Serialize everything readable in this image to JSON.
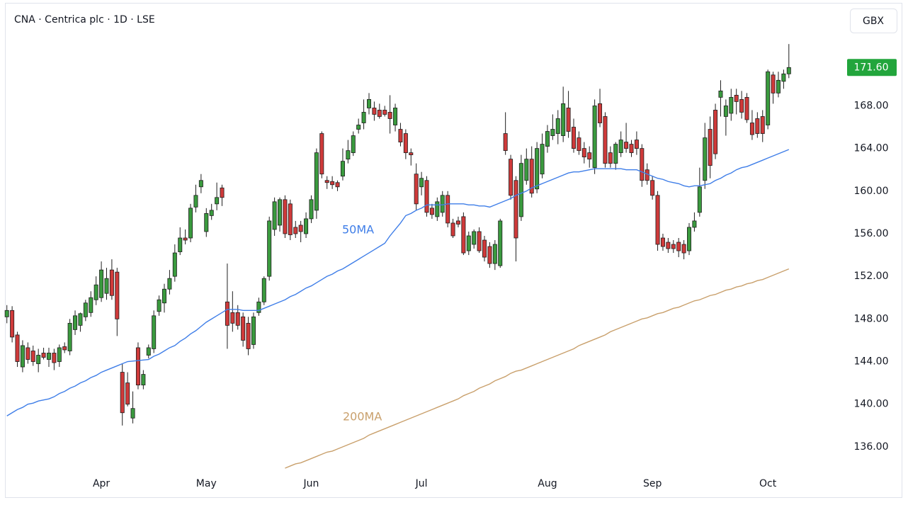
{
  "chart_data": {
    "type": "candlestick",
    "title": "CNA · Centrica plc · 1D · LSE",
    "currency": "GBX",
    "categories": [
      null,
      null,
      null,
      null,
      null,
      null,
      null,
      null,
      null,
      null,
      null,
      null,
      null,
      null,
      null,
      null,
      null,
      null,
      "Apr",
      null,
      null,
      null,
      null,
      null,
      null,
      null,
      null,
      null,
      null,
      null,
      null,
      null,
      null,
      null,
      null,
      null,
      null,
      null,
      "May",
      null,
      null,
      null,
      null,
      null,
      null,
      null,
      null,
      null,
      null,
      null,
      null,
      null,
      null,
      null,
      null,
      null,
      null,
      null,
      "Jun",
      null,
      null,
      null,
      null,
      null,
      null,
      null,
      null,
      null,
      null,
      null,
      null,
      null,
      null,
      null,
      null,
      null,
      null,
      null,
      null,
      "Jul",
      null,
      null,
      null,
      null,
      null,
      null,
      null,
      null,
      null,
      null,
      null,
      null,
      null,
      null,
      null,
      null,
      null,
      null,
      null,
      null,
      null,
      null,
      null,
      "Aug",
      null,
      null,
      null,
      null,
      null,
      null,
      null,
      null,
      null,
      null,
      null,
      null,
      null,
      null,
      null,
      null,
      null,
      null,
      null,
      "Sep",
      null,
      null,
      null,
      null,
      null,
      null,
      null,
      null,
      null,
      null,
      null,
      null,
      null,
      null,
      null,
      null,
      null,
      null,
      null,
      null,
      null,
      "Oct",
      null,
      null,
      null,
      null
    ],
    "open": [
      148.2,
      148.8,
      146.5,
      143.5,
      145.3,
      145.0,
      143.8,
      144.8,
      144.2,
      144.8,
      144.0,
      145.4,
      145.0,
      147.0,
      147.4,
      148.2,
      148.6,
      149.8,
      150.0,
      150.4,
      152.6,
      152.4,
      143.0,
      142.0,
      138.7,
      145.3,
      141.8,
      144.6,
      145.2,
      148.7,
      149.5,
      150.8,
      152.0,
      154.3,
      155.6,
      155.6,
      158.5,
      160.4,
      156.2,
      157.7,
      158.8,
      160.3,
      149.6,
      148.6,
      148.6,
      148.2,
      147.6,
      145.6,
      148.6,
      149.6,
      152.0,
      156.4,
      156.8,
      159.2,
      158.8,
      156.6,
      156.8,
      156.0,
      157.4,
      158.2,
      165.4,
      161.0,
      160.9,
      160.8,
      161.4,
      163.0,
      163.6,
      165.8,
      166.4,
      167.8,
      167.8,
      167.6,
      167.6,
      167.4,
      166.2,
      165.8,
      165.4,
      163.6,
      161.6,
      160.4,
      161.0,
      158.4,
      157.6,
      158.0,
      159.6,
      157.0,
      157.2,
      157.6,
      154.4,
      155.0,
      156.2,
      155.4,
      154.8,
      153.2,
      153.0,
      165.4,
      163.0,
      161.0,
      157.6,
      161.0,
      163.0,
      160.2,
      161.6,
      164.2,
      165.2,
      165.4,
      165.2,
      167.8,
      166.0,
      165.0,
      164.0,
      163.6,
      162.2,
      168.2,
      167.0,
      163.6,
      162.6,
      163.6,
      164.6,
      164.4,
      164.8,
      164.0,
      162.0,
      161.0,
      159.6,
      155.6,
      155.2,
      155.0,
      155.2,
      155.0,
      154.4,
      156.6,
      158.0,
      161.0,
      165.8,
      167.6,
      168.8,
      167.0,
      167.3,
      169.0,
      168.6,
      168.8,
      166.4,
      166.8,
      167.0,
      166.2,
      170.9,
      169.2,
      170.3,
      171.0
    ],
    "high": [
      149.3,
      149.2,
      146.8,
      146.0,
      145.8,
      145.5,
      145.2,
      145.3,
      145.3,
      145.2,
      145.6,
      145.8,
      148.0,
      148.8,
      148.6,
      149.8,
      150.6,
      152.0,
      153.4,
      152.8,
      153.6,
      152.8,
      143.8,
      143.0,
      141.2,
      145.8,
      143.2,
      145.6,
      148.8,
      150.2,
      151.3,
      152.6,
      155.0,
      156.6,
      156.4,
      158.8,
      160.6,
      161.6,
      158.4,
      158.8,
      160.8,
      160.6,
      153.2,
      150.6,
      149.3,
      148.6,
      148.2,
      148.6,
      150.0,
      152.0,
      157.6,
      159.4,
      159.4,
      159.6,
      159.2,
      157.2,
      157.2,
      158.0,
      159.6,
      164.0,
      165.6,
      161.4,
      161.4,
      161.0,
      164.0,
      164.8,
      165.6,
      166.8,
      168.6,
      169.2,
      168.4,
      168.2,
      168.0,
      169.0,
      168.2,
      166.4,
      165.8,
      164.0,
      162.6,
      161.8,
      161.4,
      158.8,
      159.4,
      160.0,
      160.0,
      157.4,
      157.6,
      158.0,
      156.2,
      156.4,
      156.6,
      155.8,
      155.2,
      155.4,
      157.4,
      167.4,
      163.4,
      161.4,
      163.4,
      164.0,
      164.2,
      164.6,
      165.4,
      166.2,
      167.2,
      167.6,
      169.8,
      169.4,
      166.8,
      165.6,
      164.6,
      164.2,
      168.6,
      169.6,
      167.4,
      164.2,
      164.6,
      165.6,
      166.4,
      164.8,
      165.6,
      164.4,
      162.6,
      161.4,
      160.0,
      156.0,
      155.6,
      155.4,
      155.6,
      155.4,
      157.0,
      158.0,
      162.2,
      166.4,
      167.0,
      168.2,
      170.4,
      168.6,
      169.6,
      169.6,
      169.4,
      169.2,
      167.6,
      167.4,
      167.6,
      171.4,
      171.2,
      171.2,
      171.4,
      173.8
    ],
    "low": [
      147.6,
      145.8,
      143.5,
      143.0,
      143.8,
      143.6,
      143.0,
      144.2,
      143.5,
      143.2,
      143.5,
      144.8,
      144.6,
      146.5,
      146.8,
      147.8,
      148.2,
      149.3,
      149.6,
      149.8,
      149.8,
      146.4,
      138.0,
      139.8,
      138.2,
      141.4,
      141.4,
      144.3,
      144.8,
      148.3,
      148.6,
      150.3,
      151.5,
      154.0,
      155.0,
      155.2,
      158.0,
      159.8,
      155.7,
      157.3,
      158.2,
      158.6,
      145.2,
      146.8,
      147.0,
      145.4,
      144.6,
      145.2,
      148.3,
      149.3,
      151.6,
      155.8,
      156.2,
      155.6,
      155.4,
      155.6,
      155.2,
      155.6,
      157.0,
      157.4,
      161.2,
      160.2,
      160.2,
      160.0,
      161.0,
      162.6,
      163.3,
      165.4,
      165.8,
      167.2,
      166.6,
      166.8,
      167.0,
      165.4,
      165.6,
      164.2,
      163.0,
      162.4,
      158.2,
      159.6,
      157.6,
      157.4,
      157.2,
      157.6,
      156.6,
      155.6,
      156.6,
      154.0,
      154.0,
      154.6,
      154.2,
      153.4,
      152.8,
      152.6,
      152.8,
      163.4,
      159.2,
      153.4,
      157.2,
      160.6,
      159.4,
      159.8,
      161.2,
      163.6,
      164.8,
      164.4,
      164.6,
      165.0,
      163.6,
      163.4,
      162.6,
      162.2,
      161.6,
      166.0,
      162.2,
      162.2,
      162.0,
      163.2,
      163.6,
      163.2,
      163.4,
      160.4,
      160.6,
      159.2,
      154.4,
      154.4,
      154.2,
      154.2,
      153.8,
      153.6,
      154.0,
      156.2,
      157.6,
      160.2,
      161.2,
      163.0,
      167.0,
      165.2,
      166.6,
      167.2,
      166.8,
      166.4,
      164.8,
      165.0,
      164.6,
      165.8,
      168.2,
      168.8,
      169.6,
      170.6
    ],
    "close": [
      148.8,
      146.3,
      144.0,
      145.5,
      144.2,
      144.0,
      144.6,
      144.4,
      144.8,
      143.9,
      145.3,
      145.1,
      147.6,
      148.3,
      148.5,
      149.5,
      150.0,
      151.2,
      152.6,
      151.8,
      150.2,
      148.0,
      139.2,
      140.0,
      139.6,
      141.8,
      142.8,
      145.3,
      148.3,
      149.8,
      150.8,
      151.8,
      154.2,
      155.6,
      155.4,
      158.4,
      159.6,
      161.0,
      157.9,
      158.2,
      159.4,
      159.4,
      147.4,
      147.6,
      147.4,
      146.0,
      145.2,
      148.2,
      149.6,
      151.8,
      157.2,
      159.0,
      159.2,
      156.0,
      155.9,
      156.0,
      156.2,
      157.4,
      159.2,
      163.6,
      161.6,
      160.8,
      160.6,
      160.4,
      162.8,
      163.8,
      165.2,
      166.2,
      167.4,
      168.6,
      167.2,
      167.0,
      167.2,
      166.8,
      167.8,
      164.6,
      163.6,
      163.4,
      158.8,
      161.2,
      158.0,
      157.8,
      159.0,
      159.6,
      157.0,
      155.8,
      156.9,
      154.2,
      155.8,
      156.2,
      154.4,
      153.8,
      153.2,
      155.0,
      157.2,
      163.8,
      159.6,
      155.6,
      162.6,
      163.0,
      159.8,
      164.0,
      164.4,
      165.6,
      165.8,
      166.8,
      168.2,
      165.6,
      164.0,
      163.8,
      163.2,
      163.0,
      168.0,
      166.4,
      162.6,
      162.6,
      164.4,
      164.8,
      164.0,
      163.6,
      164.0,
      161.0,
      161.0,
      159.6,
      155.0,
      154.8,
      154.6,
      154.6,
      154.4,
      154.2,
      156.6,
      157.2,
      160.4,
      165.0,
      162.4,
      163.5,
      169.4,
      168.0,
      168.8,
      168.4,
      167.4,
      166.7,
      165.3,
      165.4,
      165.4,
      171.2,
      169.2,
      170.4,
      171.0,
      171.6
    ],
    "up_color": "#3a9a3e",
    "down_color": "#cf3a3a",
    "series": [
      {
        "name": "50MA",
        "color": "#3f7ee8",
        "values": [
          138.9,
          139.2,
          139.5,
          139.7,
          140.0,
          140.1,
          140.3,
          140.4,
          140.5,
          140.7,
          141.0,
          141.2,
          141.5,
          141.7,
          142.0,
          142.2,
          142.5,
          142.7,
          143.0,
          143.2,
          143.4,
          143.6,
          143.8,
          144.0,
          144.05,
          144.1,
          144.15,
          144.2,
          144.5,
          144.7,
          145.0,
          145.3,
          145.5,
          145.9,
          146.2,
          146.6,
          146.9,
          147.3,
          147.7,
          148.0,
          148.3,
          148.6,
          148.9,
          148.9,
          148.9,
          148.8,
          148.8,
          148.8,
          148.8,
          149.0,
          149.2,
          149.4,
          149.6,
          149.8,
          150.1,
          150.3,
          150.6,
          150.9,
          151.1,
          151.4,
          151.7,
          152.0,
          152.2,
          152.5,
          152.7,
          153.0,
          153.3,
          153.6,
          153.9,
          154.2,
          154.5,
          154.8,
          155.1,
          155.8,
          156.4,
          157.0,
          157.7,
          157.9,
          158.2,
          158.4,
          158.7,
          158.7,
          158.7,
          158.7,
          158.8,
          158.8,
          158.8,
          158.8,
          158.7,
          158.7,
          158.6,
          158.6,
          158.5,
          158.7,
          158.9,
          159.1,
          159.3,
          159.6,
          159.8,
          160.0,
          160.3,
          160.5,
          160.7,
          160.9,
          161.1,
          161.3,
          161.5,
          161.7,
          161.8,
          161.8,
          161.9,
          162.0,
          162.1,
          162.1,
          162.1,
          162.1,
          162.1,
          162.1,
          162.0,
          162.0,
          162.0,
          161.8,
          161.6,
          161.4,
          161.2,
          161.1,
          160.9,
          160.8,
          160.7,
          160.5,
          160.4,
          160.5,
          160.5,
          160.6,
          160.7,
          161.0,
          161.2,
          161.5,
          161.7,
          162.0,
          162.2,
          162.3,
          162.5,
          162.7,
          162.9,
          163.1,
          163.3,
          163.5,
          163.7,
          163.9
        ]
      },
      {
        "name": "200MA",
        "color": "#c9a06c",
        "values": [
          null,
          null,
          null,
          null,
          null,
          null,
          null,
          null,
          null,
          null,
          null,
          null,
          null,
          null,
          null,
          null,
          null,
          null,
          null,
          null,
          null,
          null,
          null,
          null,
          null,
          null,
          null,
          null,
          null,
          null,
          null,
          null,
          null,
          null,
          null,
          null,
          null,
          null,
          null,
          null,
          null,
          null,
          null,
          null,
          null,
          null,
          null,
          null,
          null,
          null,
          null,
          null,
          null,
          134.0,
          134.2,
          134.4,
          134.5,
          134.7,
          134.9,
          135.1,
          135.3,
          135.5,
          135.6,
          135.8,
          136.0,
          136.2,
          136.4,
          136.6,
          136.8,
          137.1,
          137.3,
          137.5,
          137.7,
          137.9,
          138.1,
          138.3,
          138.5,
          138.7,
          138.9,
          139.1,
          139.3,
          139.5,
          139.7,
          139.9,
          140.1,
          140.3,
          140.5,
          140.8,
          141.0,
          141.2,
          141.5,
          141.7,
          141.9,
          142.2,
          142.4,
          142.6,
          142.9,
          143.1,
          143.2,
          143.4,
          143.6,
          143.8,
          144.0,
          144.2,
          144.4,
          144.6,
          144.8,
          145.0,
          145.2,
          145.5,
          145.7,
          145.9,
          146.1,
          146.3,
          146.5,
          146.8,
          147.0,
          147.2,
          147.4,
          147.6,
          147.8,
          148.0,
          148.1,
          148.3,
          148.5,
          148.6,
          148.8,
          149.0,
          149.1,
          149.3,
          149.5,
          149.7,
          149.8,
          150.0,
          150.2,
          150.3,
          150.5,
          150.7,
          150.8,
          151.0,
          151.1,
          151.3,
          151.4,
          151.6,
          151.7,
          151.9,
          152.1,
          152.3,
          152.5,
          152.7
        ]
      }
    ],
    "ylim": [
      133.4,
      177.6
    ],
    "yticks": [
      {
        "value": 136,
        "label": "136.00"
      },
      {
        "value": 140,
        "label": "140.00"
      },
      {
        "value": 144,
        "label": "144.00"
      },
      {
        "value": 148,
        "label": "148.00"
      },
      {
        "value": 152,
        "label": "152.00"
      },
      {
        "value": 156,
        "label": "156.00"
      },
      {
        "value": 160,
        "label": "160.00"
      },
      {
        "value": 164,
        "label": "164.00"
      },
      {
        "value": 168,
        "label": "168.00"
      }
    ],
    "last_price_label": "171.60",
    "grid": false
  }
}
